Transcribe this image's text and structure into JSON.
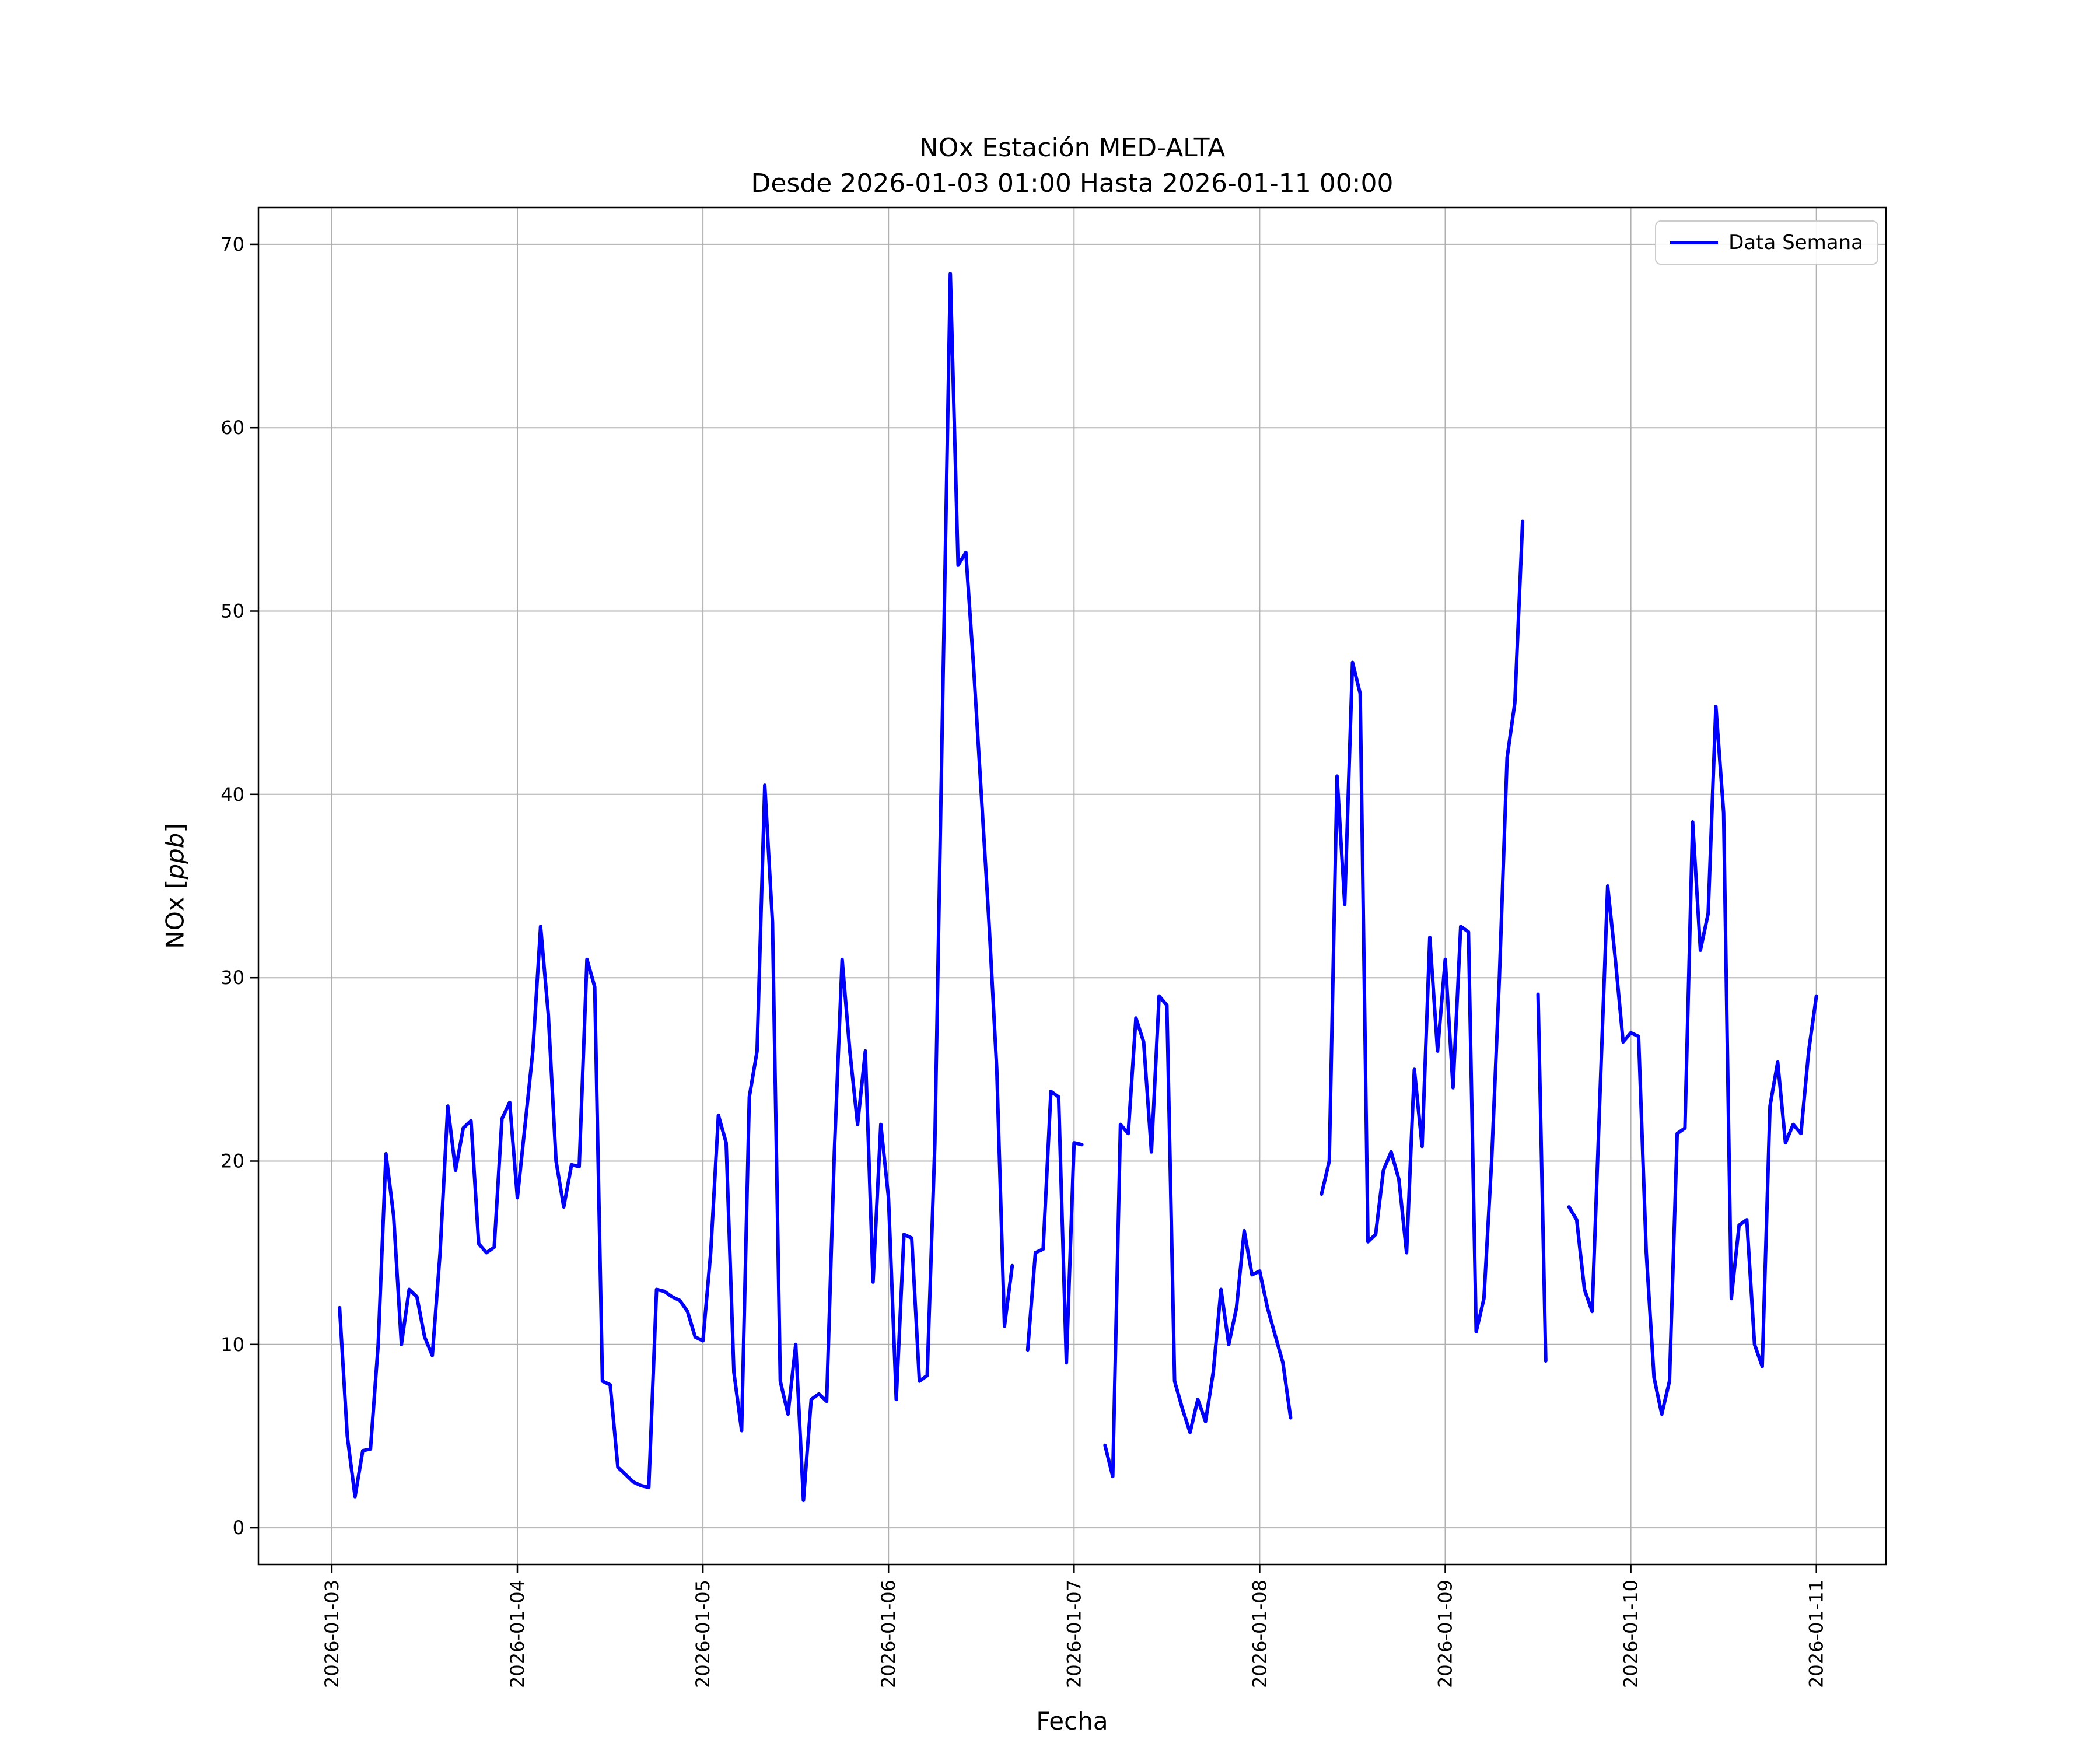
{
  "figure": {
    "title_line1": "NOx Estación MED-ALTA",
    "title_line2": "Desde 2026-01-03 01:00 Hasta 2026-01-11 00:00",
    "xlabel": "Fecha",
    "ylabel": {
      "prefix": "NOx [",
      "italic": "ppb",
      "suffix": "]"
    },
    "legend": {
      "label": "Data Semana"
    }
  },
  "chart_data": {
    "type": "line",
    "title": "NOx Estación MED-ALTA",
    "subtitle": "Desde 2026-01-03 01:00 Hasta 2026-01-11 00:00",
    "xlabel": "Fecha",
    "ylabel": "NOx [ppb]",
    "grid": true,
    "legend_position": "upper right",
    "line_color": "#0000ff",
    "x_unit": "hours since 2026-01-03 00:00",
    "x_start_hour": 1,
    "x_step_hours": 1,
    "xlim_hours": [
      -9.5,
      201
    ],
    "ylim": [
      -2,
      72
    ],
    "y_ticks": [
      0,
      10,
      20,
      30,
      40,
      50,
      60,
      70
    ],
    "x_ticks": [
      {
        "hour": 0,
        "label": "2026-01-03"
      },
      {
        "hour": 24,
        "label": "2026-01-04"
      },
      {
        "hour": 48,
        "label": "2026-01-05"
      },
      {
        "hour": 72,
        "label": "2026-01-06"
      },
      {
        "hour": 96,
        "label": "2026-01-07"
      },
      {
        "hour": 120,
        "label": "2026-01-08"
      },
      {
        "hour": 144,
        "label": "2026-01-09"
      },
      {
        "hour": 168,
        "label": "2026-01-10"
      },
      {
        "hour": 192,
        "label": "2026-01-11"
      }
    ],
    "series": [
      {
        "name": "Data Semana",
        "color": "#0000ff",
        "values": [
          12,
          5,
          1.7,
          4.2,
          4.3,
          10,
          20.4,
          17,
          10,
          13,
          12.6,
          10.4,
          9.4,
          15,
          23,
          19.5,
          21.8,
          22.2,
          15.5,
          15,
          15.3,
          22.3,
          23.2,
          18,
          22,
          26,
          32.8,
          28,
          20,
          17.5,
          19.8,
          19.7,
          31,
          29.5,
          8,
          7.8,
          3.3,
          2.9,
          2.5,
          2.3,
          2.2,
          13,
          12.9,
          12.6,
          12.4,
          11.8,
          10.4,
          10.2,
          15,
          22.5,
          21,
          8.5,
          5.3,
          23.5,
          26,
          40.5,
          33,
          8,
          6.2,
          10,
          1.5,
          7,
          7.3,
          6.9,
          20.5,
          31,
          26,
          22,
          26,
          13.4,
          22,
          18,
          7,
          16,
          15.8,
          8,
          8.3,
          21,
          45,
          68.4,
          52.5,
          53.2,
          47,
          40,
          33,
          25,
          11,
          14.3,
          null,
          9.7,
          15,
          15.2,
          23.8,
          23.5,
          9,
          21,
          20.9,
          null,
          null,
          4.5,
          2.8,
          22,
          21.5,
          27.8,
          26.5,
          20.5,
          29,
          28.5,
          8,
          6.5,
          5.2,
          7,
          5.8,
          8.5,
          13,
          10,
          12,
          16.2,
          13.8,
          14,
          12,
          10.5,
          9,
          6,
          null,
          null,
          null,
          18.2,
          20,
          41,
          34,
          47.2,
          45.5,
          15.6,
          16,
          19.5,
          20.5,
          19,
          15,
          25,
          20.8,
          32.2,
          26,
          31,
          24,
          32.8,
          32.5,
          10.7,
          12.5,
          20,
          30,
          42,
          45,
          54.9,
          null,
          29.1,
          9.1,
          null,
          null,
          17.5,
          16.8,
          13,
          11.8,
          23.5,
          35,
          31,
          26.5,
          27,
          26.8,
          15,
          8.2,
          6.2,
          8,
          21.5,
          21.8,
          38.5,
          31.5,
          33.5,
          44.8,
          39,
          12.5,
          16.5,
          16.8,
          10,
          8.8,
          23,
          25.4,
          21,
          22,
          21.5,
          26,
          29
        ]
      }
    ]
  }
}
